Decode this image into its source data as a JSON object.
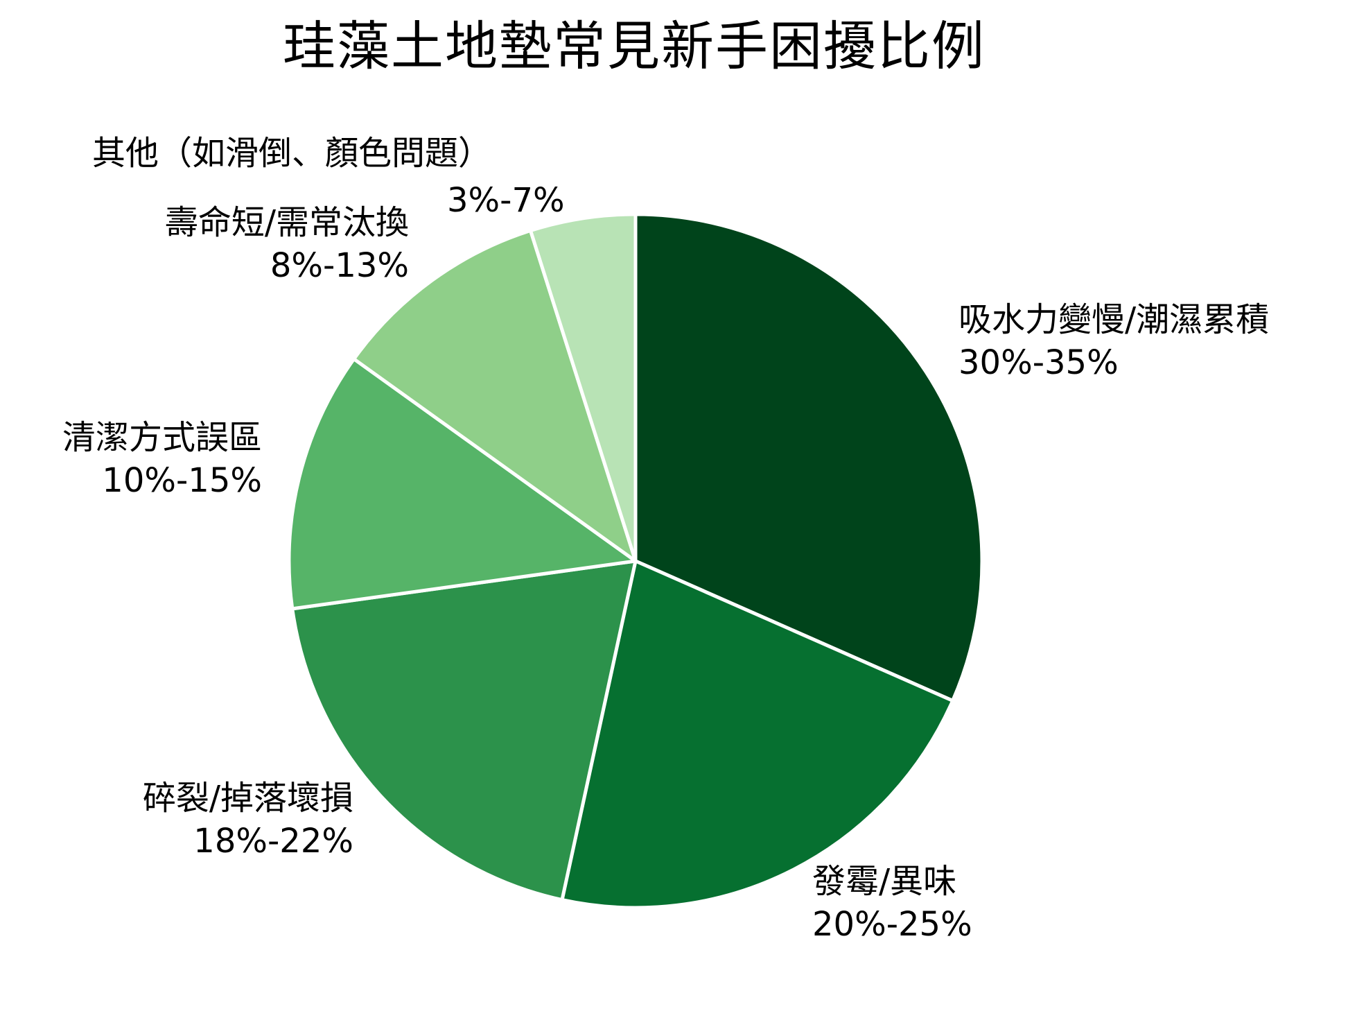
{
  "chart_data": {
    "type": "pie",
    "title": "珪藻土地墊常見新手困擾比例",
    "start_angle": "12 o'clock, clockwise",
    "colors": [
      "#00441b",
      "#067030",
      "#2c924b",
      "#56b468",
      "#8fcf89",
      "#b8e3b5"
    ],
    "categories": [
      "吸水力變慢/潮濕累積",
      "發霉/異味",
      "碎裂/掉落壞損",
      "清潔方式誤區",
      "壽命短/需常汰換",
      "其他（如滑倒、顏色問題）"
    ],
    "ranges": [
      "30%-35%",
      "20%-25%",
      "18%-22%",
      "10%-15%",
      "8%-13%",
      "3%-7%"
    ],
    "values": [
      31.6,
      21.8,
      19.4,
      12.1,
      10.2,
      4.9
    ],
    "legend": "none (direct labels)"
  },
  "labels": [
    {
      "name": "吸水力變慢/潮濕累積",
      "pct": "30%-35%"
    },
    {
      "name": "發霉/異味",
      "pct": "20%-25%"
    },
    {
      "name": "碎裂/掉落壞損",
      "pct": "18%-22%"
    },
    {
      "name": "清潔方式誤區",
      "pct": "10%-15%"
    },
    {
      "name": "壽命短/需常汰換",
      "pct": "8%-13%"
    },
    {
      "name": "其他（如滑倒、顏色問題）",
      "pct": "3%-7%"
    }
  ]
}
